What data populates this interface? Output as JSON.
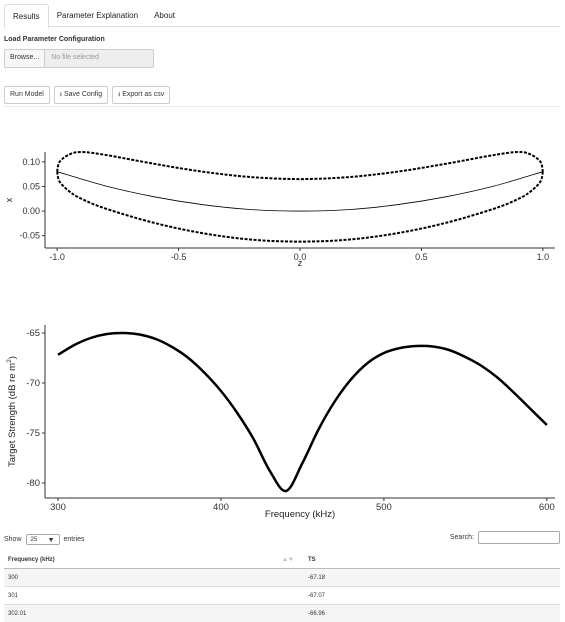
{
  "tabs": [
    {
      "label": "Results",
      "active": true
    },
    {
      "label": "Parameter Explanation",
      "active": false
    },
    {
      "label": "About",
      "active": false
    }
  ],
  "load_config": {
    "label": "Load Parameter Configuration",
    "browse_label": "Browse...",
    "file_placeholder": "No file selected"
  },
  "actions": {
    "run_label": "Run Model",
    "save_label": "Save Config",
    "export_label": "Export as csv"
  },
  "chart_data": [
    {
      "type": "line",
      "xlabel": "z",
      "ylabel": "x",
      "xlim": [
        -1.05,
        1.05
      ],
      "ylim": [
        -0.075,
        0.12
      ],
      "xticks": [
        -1.0,
        -0.5,
        0.0,
        0.5,
        1.0
      ],
      "yticks": [
        -0.05,
        0.0,
        0.05,
        0.1
      ],
      "xtick_labels": [
        "-1.0",
        "-0.5",
        "0.0",
        "0.5",
        "1.0"
      ],
      "ytick_labels": [
        "-0.05",
        "0.00",
        "0.05",
        "0.10"
      ],
      "series": [
        {
          "style": "dashed",
          "x": [
            -1.0,
            -0.99,
            -0.95,
            -0.9,
            -0.8,
            -0.6,
            -0.4,
            -0.2,
            0.0,
            0.2,
            0.4,
            0.6,
            0.8,
            0.9,
            0.95,
            0.99,
            1.0
          ],
          "y": [
            0.08,
            0.1,
            0.115,
            0.12,
            0.114,
            0.096,
            0.08,
            0.069,
            0.065,
            0.069,
            0.08,
            0.096,
            0.114,
            0.12,
            0.115,
            0.1,
            0.08
          ]
        },
        {
          "style": "dashed",
          "x": [
            -1.0,
            -0.99,
            -0.95,
            -0.9,
            -0.8,
            -0.6,
            -0.4,
            -0.2,
            0.0,
            0.2,
            0.4,
            0.6,
            0.8,
            0.9,
            0.95,
            0.99,
            1.0
          ],
          "y": [
            0.08,
            0.06,
            0.04,
            0.025,
            0.005,
            -0.024,
            -0.045,
            -0.058,
            -0.062,
            -0.058,
            -0.045,
            -0.024,
            0.005,
            0.025,
            0.04,
            0.06,
            0.08
          ]
        },
        {
          "style": "solid",
          "x": [
            -1.0,
            -0.8,
            -0.6,
            -0.4,
            -0.2,
            0.0,
            0.2,
            0.4,
            0.6,
            0.8,
            1.0
          ],
          "y": [
            0.08,
            0.051,
            0.029,
            0.013,
            0.003,
            0.0,
            0.003,
            0.013,
            0.029,
            0.051,
            0.08
          ]
        }
      ]
    },
    {
      "type": "line",
      "xlabel": "Frequency (kHz)",
      "ylabel": "Target Strength (dB re m",
      "ylabel_sup": "2",
      "ylabel_end": ")",
      "xlim": [
        292,
        605
      ],
      "ylim": [
        -81.5,
        -64.2
      ],
      "xticks": [
        300,
        400,
        500,
        600
      ],
      "yticks": [
        -65,
        -70,
        -75,
        -80
      ],
      "xtick_labels": [
        "300",
        "400",
        "500",
        "600"
      ],
      "ytick_labels": [
        "-65",
        "-70",
        "-75",
        "-80"
      ],
      "series": [
        {
          "style": "solid",
          "x": [
            300,
            310,
            320,
            330,
            340,
            350,
            360,
            370,
            380,
            390,
            400,
            410,
            420,
            430,
            440,
            450,
            460,
            470,
            480,
            490,
            500,
            510,
            520,
            530,
            540,
            550,
            560,
            570,
            580,
            590,
            600
          ],
          "y": [
            -67.18,
            -66.2,
            -65.5,
            -65.1,
            -65.0,
            -65.15,
            -65.6,
            -66.4,
            -67.5,
            -69.0,
            -70.8,
            -73.0,
            -75.6,
            -78.8,
            -80.8,
            -78.0,
            -74.6,
            -71.8,
            -69.6,
            -68.0,
            -67.0,
            -66.5,
            -66.3,
            -66.35,
            -66.7,
            -67.4,
            -68.3,
            -69.5,
            -71.0,
            -72.6,
            -74.2
          ]
        }
      ]
    }
  ],
  "table": {
    "show_label": "Show",
    "entries_value": "25",
    "entries_label": "entries",
    "search_label": "Search:",
    "columns": [
      "Frequency (kHz)",
      "TS"
    ],
    "rows": [
      [
        "300",
        "-67.18"
      ],
      [
        "301",
        "-67.07"
      ],
      [
        "302.01",
        "-66.96"
      ]
    ]
  }
}
